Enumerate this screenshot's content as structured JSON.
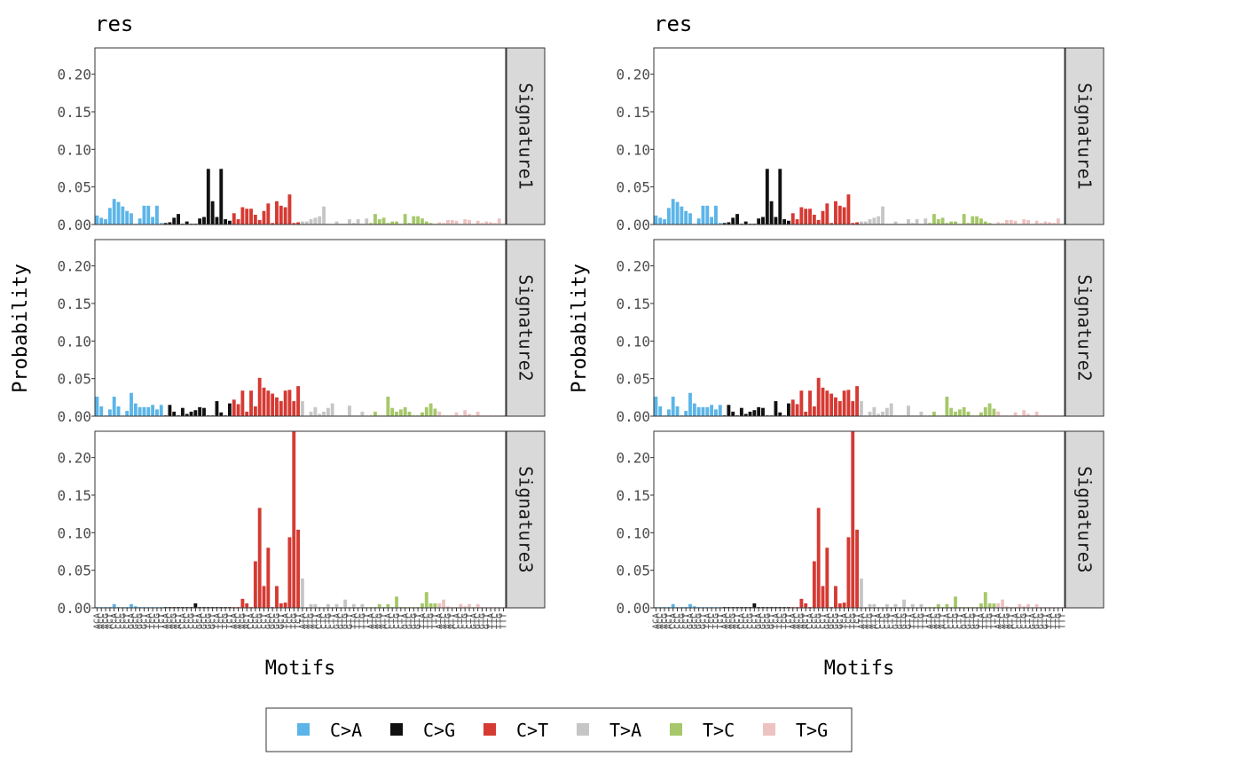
{
  "colors": {
    "C>A": "#5bb5e8",
    "C>G": "#111111",
    "C>T": "#d53a33",
    "T>A": "#c6c6c6",
    "T>C": "#a6c86a",
    "T>G": "#ecc3c1"
  },
  "chart_data": [
    {
      "type": "bar",
      "title": "res",
      "xlabel": "Motifs",
      "ylabel": "Probability",
      "ylim": [
        0,
        0.235
      ],
      "yticks": [
        "0.00",
        "0.05",
        "0.10",
        "0.15",
        "0.20"
      ],
      "categories_note": "96 trinucleotide motifs",
      "x": [
        "ACA",
        "ACC",
        "ACG",
        "ACT",
        "CCA",
        "CCC",
        "CCG",
        "CCT",
        "GCA",
        "GCC",
        "GCG",
        "GCT",
        "TCA",
        "TCC",
        "TCG",
        "TCT",
        "ACA",
        "ACC",
        "ACG",
        "ACT",
        "CCA",
        "CCC",
        "CCG",
        "CCT",
        "GCA",
        "GCC",
        "GCG",
        "GCT",
        "TCA",
        "TCC",
        "TCG",
        "TCT",
        "ACA",
        "ACC",
        "ACG",
        "ACT",
        "CCA",
        "CCC",
        "CCG",
        "CCT",
        "GCA",
        "GCC",
        "GCG",
        "GCT",
        "TCA",
        "TCC",
        "TCG",
        "TCT",
        "ATA",
        "ATC",
        "ATG",
        "ATT",
        "CTA",
        "CTC",
        "CTG",
        "CTT",
        "GTA",
        "GTC",
        "GTG",
        "GTT",
        "TTA",
        "TTC",
        "TTG",
        "TTT",
        "ATA",
        "ATC",
        "ATG",
        "ATT",
        "CTA",
        "CTC",
        "CTG",
        "CTT",
        "GTA",
        "GTC",
        "GTG",
        "GTT",
        "TTA",
        "TTC",
        "TTG",
        "TTT",
        "ATA",
        "ATC",
        "ATG",
        "ATT",
        "CTA",
        "CTC",
        "CTG",
        "CTT",
        "GTA",
        "GTC",
        "GTG",
        "GTT",
        "TTA",
        "TTC",
        "TTG",
        "TTT"
      ],
      "mutation_types": [
        "C>A",
        "C>G",
        "C>T",
        "T>A",
        "T>C",
        "T>G"
      ],
      "facets": [
        {
          "label": "Signature1",
          "values": [
            0.012,
            0.009,
            0.007,
            0.022,
            0.034,
            0.03,
            0.024,
            0.018,
            0.015,
            0.001,
            0.008,
            0.025,
            0.025,
            0.01,
            0.025,
            0.002,
            0.002,
            0.003,
            0.009,
            0.014,
            0.001,
            0.004,
            0.001,
            0.001,
            0.008,
            0.01,
            0.074,
            0.031,
            0.01,
            0.074,
            0.007,
            0.005,
            0.015,
            0.007,
            0.023,
            0.021,
            0.021,
            0.013,
            0.006,
            0.018,
            0.028,
            0.002,
            0.031,
            0.025,
            0.023,
            0.04,
            0.002,
            0.003,
            0.004,
            0.004,
            0.007,
            0.009,
            0.011,
            0.024,
            0.001,
            0.001,
            0.004,
            0.001,
            0.001,
            0.007,
            0.002,
            0.007,
            0.001,
            0.008,
            0.002,
            0.014,
            0.007,
            0.009,
            0.002,
            0.004,
            0.004,
            0.001,
            0.014,
            0.002,
            0.011,
            0.011,
            0.008,
            0.004,
            0.002,
            0.001,
            0.003,
            0.002,
            0.006,
            0.006,
            0.005,
            0.001,
            0.007,
            0.006,
            0.001,
            0.005,
            0.002,
            0.004,
            0.003,
            0.002,
            0.008,
            0.001
          ]
        },
        {
          "label": "Signature2",
          "values": [
            0.026,
            0.013,
            0.001,
            0.009,
            0.026,
            0.013,
            0.001,
            0.007,
            0.031,
            0.017,
            0.012,
            0.012,
            0.012,
            0.015,
            0.009,
            0.015,
            0.001,
            0.015,
            0.006,
            0.001,
            0.011,
            0.003,
            0.006,
            0.008,
            0.012,
            0.011,
            0.001,
            0.001,
            0.02,
            0.005,
            0.001,
            0.017,
            0.022,
            0.016,
            0.034,
            0.006,
            0.034,
            0.013,
            0.051,
            0.038,
            0.034,
            0.03,
            0.025,
            0.02,
            0.034,
            0.035,
            0.02,
            0.04,
            0.02,
            0.001,
            0.006,
            0.012,
            0.003,
            0.006,
            0.011,
            0.017,
            0.001,
            0.001,
            0.001,
            0.014,
            0.001,
            0.001,
            0.006,
            0.001,
            0.001,
            0.006,
            0.001,
            0.001,
            0.026,
            0.011,
            0.006,
            0.009,
            0.012,
            0.006,
            0.001,
            0.001,
            0.005,
            0.012,
            0.017,
            0.01,
            0.006,
            0.001,
            0.001,
            0.001,
            0.005,
            0.001,
            0.008,
            0.003,
            0.001,
            0.006,
            0.001,
            0.001,
            0.001,
            0.001,
            0.001,
            0.001
          ]
        },
        {
          "label": "Signature3",
          "values": [
            0.001,
            0.001,
            0.001,
            0.001,
            0.005,
            0.001,
            0.001,
            0.001,
            0.005,
            0.002,
            0.001,
            0.001,
            0.001,
            0.001,
            0.001,
            0.001,
            0.001,
            0.001,
            0.001,
            0.001,
            0.001,
            0.001,
            0.001,
            0.006,
            0.001,
            0.001,
            0.001,
            0.001,
            0.001,
            0.001,
            0.001,
            0.001,
            0.001,
            0.001,
            0.012,
            0.006,
            0.001,
            0.062,
            0.133,
            0.029,
            0.08,
            0.001,
            0.029,
            0.006,
            0.007,
            0.094,
            0.235,
            0.104,
            0.039,
            0.001,
            0.005,
            0.005,
            0.001,
            0.001,
            0.005,
            0.001,
            0.005,
            0.001,
            0.011,
            0.001,
            0.005,
            0.001,
            0.005,
            0.001,
            0.001,
            0.001,
            0.005,
            0.001,
            0.005,
            0.001,
            0.015,
            0.001,
            0.001,
            0.001,
            0.001,
            0.001,
            0.006,
            0.021,
            0.006,
            0.006,
            0.006,
            0.011,
            0.002,
            0.001,
            0.001,
            0.005,
            0.002,
            0.005,
            0.001,
            0.005,
            0.001,
            0.001,
            0.001,
            0.001,
            0.001,
            0.001
          ]
        }
      ]
    },
    {
      "type": "bar",
      "title": "res",
      "xlabel": "Motifs",
      "ylabel": "Probability",
      "ylim": [
        0,
        0.235
      ],
      "yticks": [
        "0.00",
        "0.05",
        "0.10",
        "0.15",
        "0.20"
      ],
      "x": [
        "ACA",
        "ACC",
        "ACG",
        "ACT",
        "CCA",
        "CCC",
        "CCG",
        "CCT",
        "GCA",
        "GCC",
        "GCG",
        "GCT",
        "TCA",
        "TCC",
        "TCG",
        "TCT",
        "ACA",
        "ACC",
        "ACG",
        "ACT",
        "CCA",
        "CCC",
        "CCG",
        "CCT",
        "GCA",
        "GCC",
        "GCG",
        "GCT",
        "TCA",
        "TCC",
        "TCG",
        "TCT",
        "ACA",
        "ACC",
        "ACG",
        "ACT",
        "CCA",
        "CCC",
        "CCG",
        "CCT",
        "GCA",
        "GCC",
        "GCG",
        "GCT",
        "TCA",
        "TCC",
        "TCG",
        "TCT",
        "ATA",
        "ATC",
        "ATG",
        "ATT",
        "CTA",
        "CTC",
        "CTG",
        "CTT",
        "GTA",
        "GTC",
        "GTG",
        "GTT",
        "TTA",
        "TTC",
        "TTG",
        "TTT",
        "ATA",
        "ATC",
        "ATG",
        "ATT",
        "CTA",
        "CTC",
        "CTG",
        "CTT",
        "GTA",
        "GTC",
        "GTG",
        "GTT",
        "TTA",
        "TTC",
        "TTG",
        "TTT",
        "ATA",
        "ATC",
        "ATG",
        "ATT",
        "CTA",
        "CTC",
        "CTG",
        "CTT",
        "GTA",
        "GTC",
        "GTG",
        "GTT",
        "TTA",
        "TTC",
        "TTG",
        "TTT"
      ],
      "mutation_types": [
        "C>A",
        "C>G",
        "C>T",
        "T>A",
        "T>C",
        "T>G"
      ],
      "facets": [
        {
          "label": "Signature1",
          "values": [
            0.012,
            0.009,
            0.007,
            0.022,
            0.034,
            0.03,
            0.024,
            0.018,
            0.015,
            0.001,
            0.008,
            0.025,
            0.025,
            0.01,
            0.025,
            0.002,
            0.002,
            0.003,
            0.009,
            0.014,
            0.001,
            0.004,
            0.001,
            0.001,
            0.008,
            0.01,
            0.074,
            0.031,
            0.01,
            0.074,
            0.007,
            0.005,
            0.015,
            0.007,
            0.023,
            0.021,
            0.021,
            0.013,
            0.006,
            0.018,
            0.028,
            0.002,
            0.031,
            0.025,
            0.023,
            0.04,
            0.002,
            0.003,
            0.004,
            0.004,
            0.007,
            0.009,
            0.011,
            0.024,
            0.001,
            0.001,
            0.004,
            0.001,
            0.001,
            0.007,
            0.002,
            0.007,
            0.001,
            0.008,
            0.002,
            0.014,
            0.007,
            0.009,
            0.002,
            0.004,
            0.004,
            0.001,
            0.014,
            0.002,
            0.011,
            0.011,
            0.008,
            0.004,
            0.002,
            0.001,
            0.003,
            0.002,
            0.006,
            0.006,
            0.005,
            0.001,
            0.007,
            0.006,
            0.001,
            0.005,
            0.002,
            0.004,
            0.003,
            0.002,
            0.008,
            0.001
          ]
        },
        {
          "label": "Signature2",
          "values": [
            0.026,
            0.013,
            0.001,
            0.009,
            0.026,
            0.013,
            0.001,
            0.007,
            0.031,
            0.017,
            0.012,
            0.012,
            0.012,
            0.015,
            0.009,
            0.015,
            0.001,
            0.015,
            0.006,
            0.001,
            0.011,
            0.003,
            0.006,
            0.008,
            0.012,
            0.011,
            0.001,
            0.001,
            0.02,
            0.005,
            0.001,
            0.017,
            0.022,
            0.016,
            0.034,
            0.006,
            0.034,
            0.013,
            0.051,
            0.038,
            0.034,
            0.03,
            0.025,
            0.02,
            0.034,
            0.035,
            0.02,
            0.04,
            0.02,
            0.001,
            0.006,
            0.012,
            0.003,
            0.006,
            0.011,
            0.017,
            0.001,
            0.001,
            0.001,
            0.014,
            0.001,
            0.001,
            0.006,
            0.001,
            0.001,
            0.006,
            0.001,
            0.001,
            0.026,
            0.011,
            0.006,
            0.009,
            0.012,
            0.006,
            0.001,
            0.001,
            0.005,
            0.012,
            0.017,
            0.01,
            0.006,
            0.001,
            0.001,
            0.001,
            0.005,
            0.001,
            0.008,
            0.003,
            0.001,
            0.006,
            0.001,
            0.001,
            0.001,
            0.001,
            0.001,
            0.001
          ]
        },
        {
          "label": "Signature3",
          "values": [
            0.001,
            0.001,
            0.001,
            0.001,
            0.005,
            0.001,
            0.001,
            0.001,
            0.005,
            0.002,
            0.001,
            0.001,
            0.001,
            0.001,
            0.001,
            0.001,
            0.001,
            0.001,
            0.001,
            0.001,
            0.001,
            0.001,
            0.001,
            0.006,
            0.001,
            0.001,
            0.001,
            0.001,
            0.001,
            0.001,
            0.001,
            0.001,
            0.001,
            0.001,
            0.012,
            0.006,
            0.001,
            0.062,
            0.133,
            0.029,
            0.08,
            0.001,
            0.029,
            0.006,
            0.007,
            0.094,
            0.235,
            0.104,
            0.039,
            0.001,
            0.005,
            0.005,
            0.001,
            0.001,
            0.005,
            0.001,
            0.005,
            0.001,
            0.011,
            0.001,
            0.005,
            0.001,
            0.005,
            0.001,
            0.001,
            0.001,
            0.005,
            0.001,
            0.005,
            0.001,
            0.015,
            0.001,
            0.001,
            0.001,
            0.001,
            0.001,
            0.006,
            0.021,
            0.006,
            0.006,
            0.006,
            0.011,
            0.002,
            0.001,
            0.001,
            0.005,
            0.002,
            0.005,
            0.001,
            0.005,
            0.001,
            0.001,
            0.001,
            0.001,
            0.001,
            0.001
          ]
        }
      ]
    }
  ],
  "legend": {
    "position": "bottom",
    "entries": [
      {
        "label": "C>A"
      },
      {
        "label": "C>G"
      },
      {
        "label": "C>T"
      },
      {
        "label": "T>A"
      },
      {
        "label": "T>C"
      },
      {
        "label": "T>G"
      }
    ]
  }
}
